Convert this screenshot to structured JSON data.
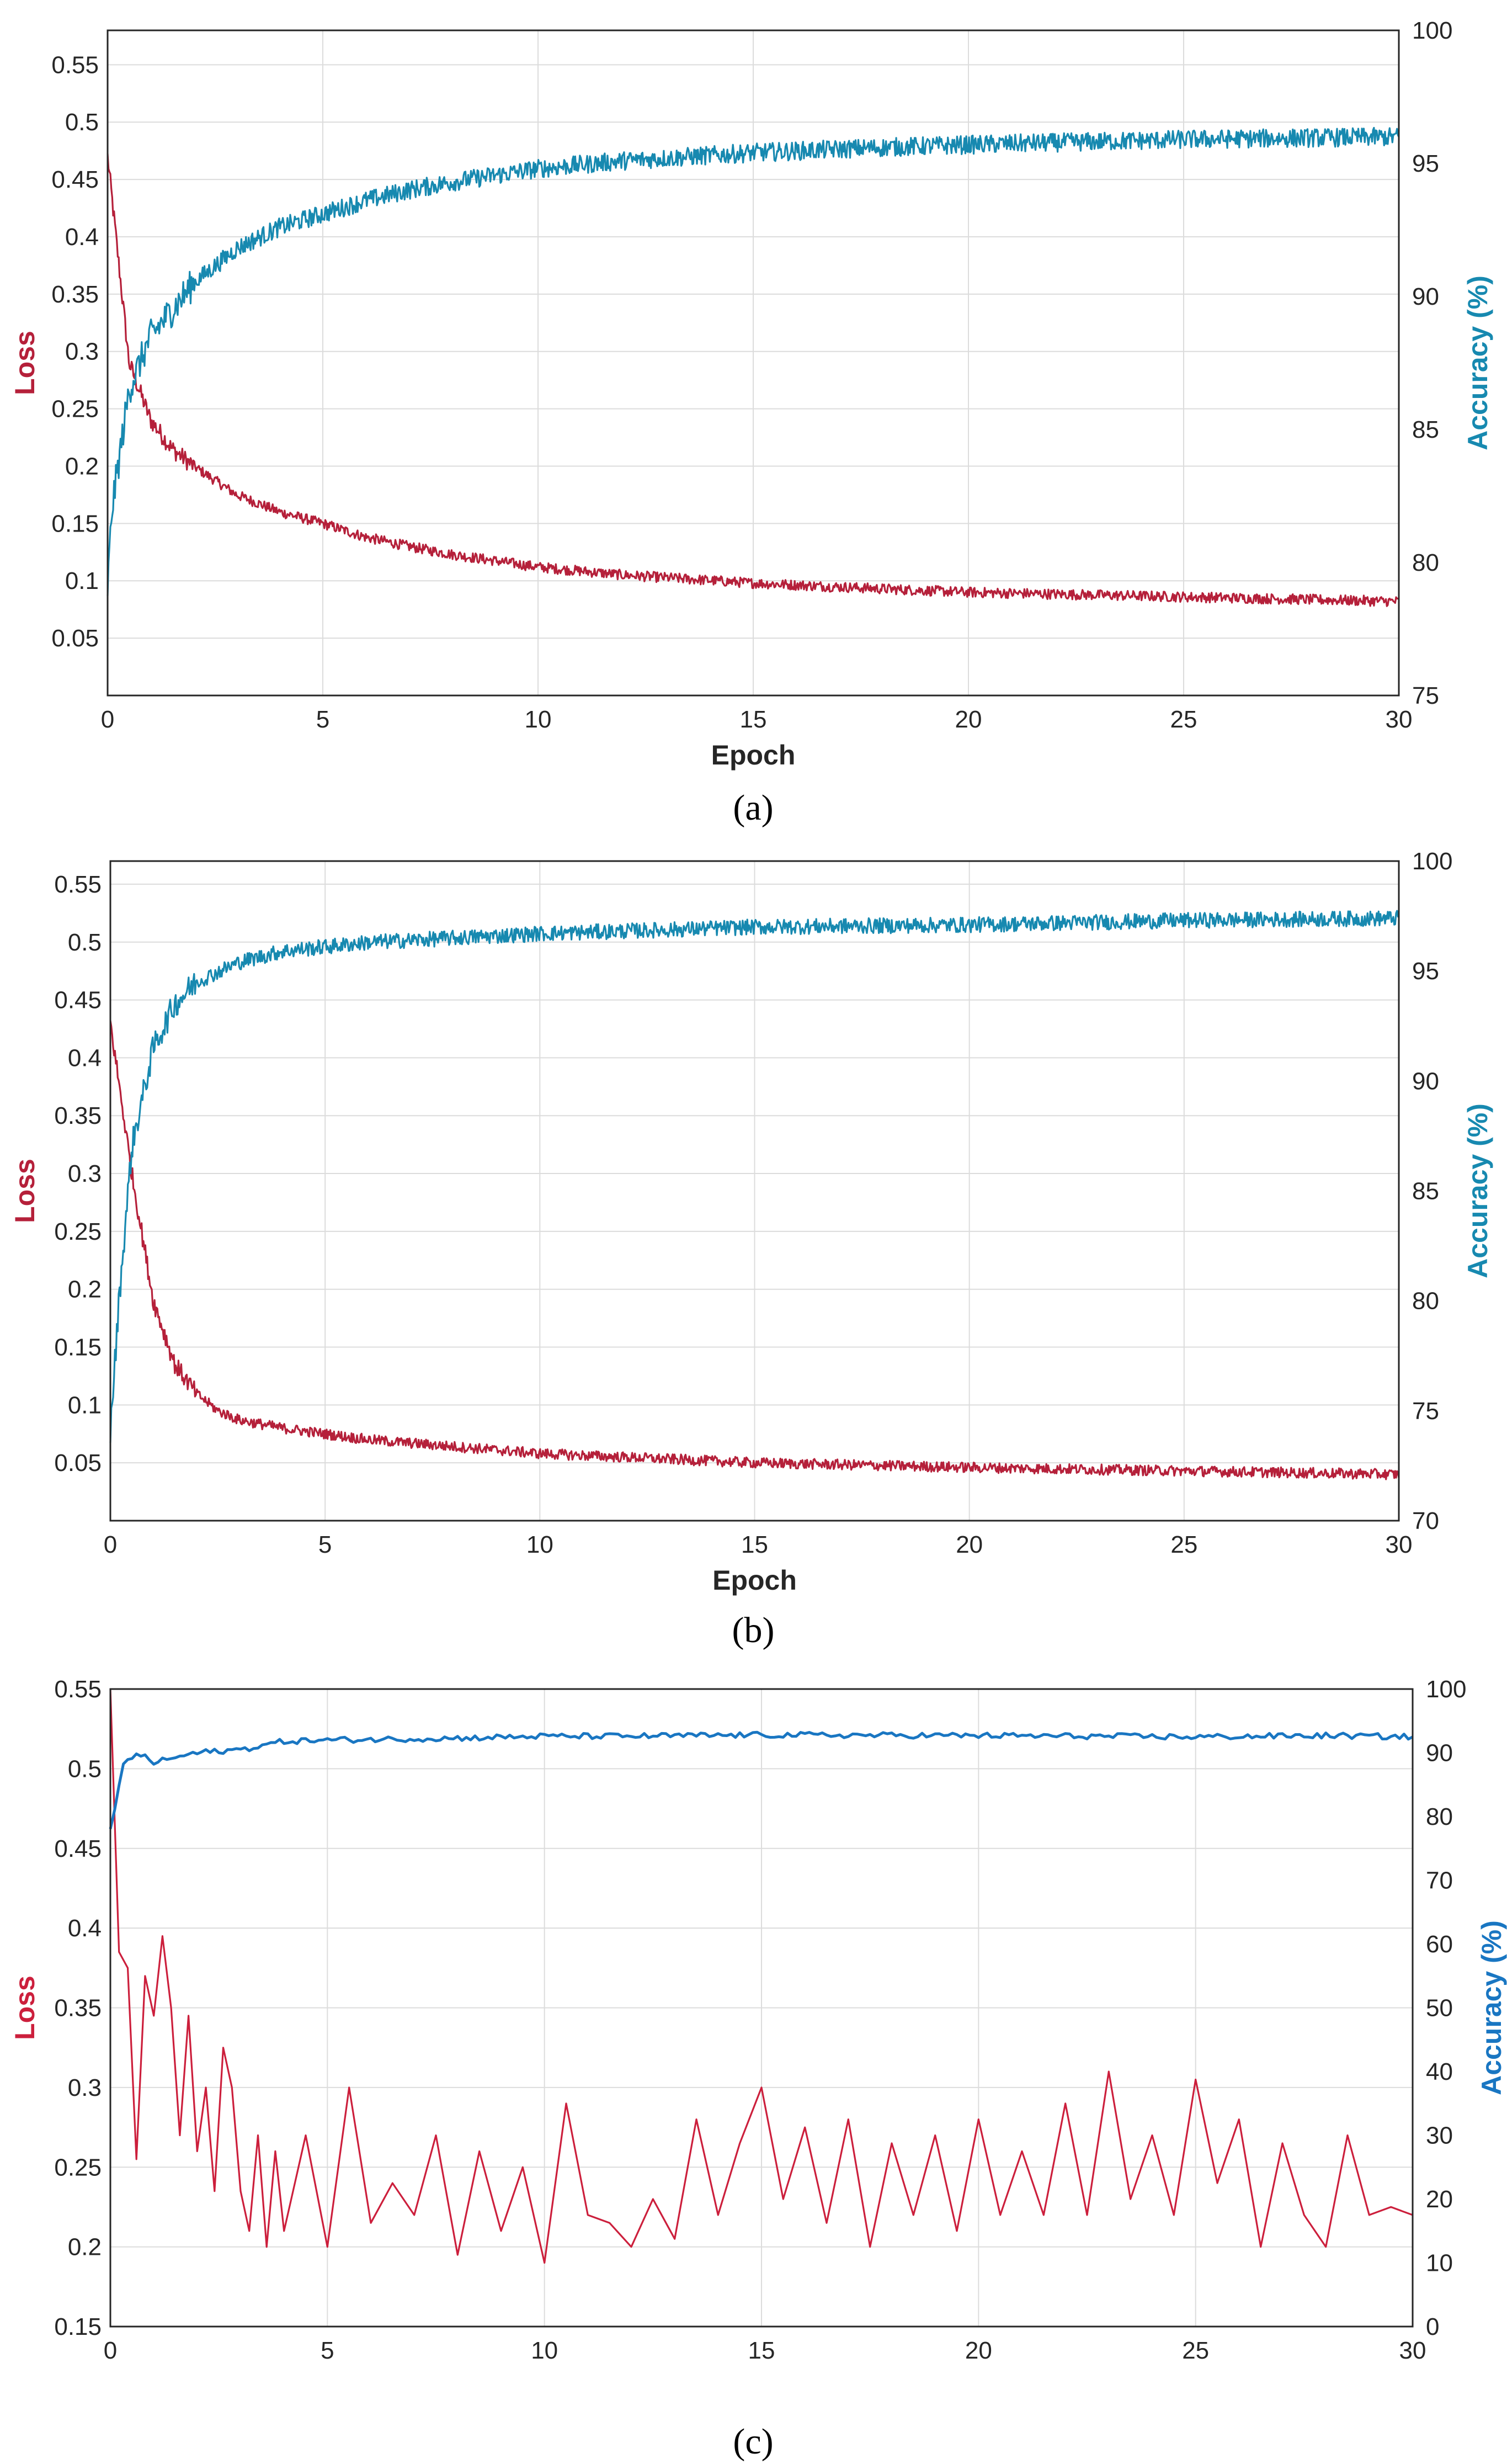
{
  "chart_data": [
    {
      "type": "line",
      "panel_label": "(a)",
      "panel_letter": "a",
      "xlabel": "Epoch",
      "ylabel_left": "Loss",
      "ylabel_right": "Accuracy (%)",
      "xlim": [
        0,
        30
      ],
      "ylim_left": [
        0,
        0.58
      ],
      "ylim_right": [
        75,
        100
      ],
      "xticks": [
        0,
        5,
        10,
        15,
        20,
        25,
        30
      ],
      "yticks_left": [
        0.05,
        0.1,
        0.15,
        0.2,
        0.25,
        0.3,
        0.35,
        0.4,
        0.45,
        0.5,
        0.55
      ],
      "yticks_right": [
        75,
        80,
        85,
        90,
        95,
        100
      ],
      "grid": true,
      "colors": {
        "loss": "#b5203a",
        "accuracy": "#1789b0"
      },
      "series": [
        {
          "name": "Loss",
          "axis": "left",
          "x": [
            0,
            0.5,
            1,
            1.5,
            2,
            3,
            4,
            5,
            6,
            7,
            8,
            10,
            12,
            15,
            18,
            20,
            25,
            30
          ],
          "values": [
            0.47,
            0.29,
            0.24,
            0.215,
            0.2,
            0.175,
            0.16,
            0.15,
            0.138,
            0.13,
            0.123,
            0.112,
            0.105,
            0.098,
            0.093,
            0.09,
            0.086,
            0.082
          ]
        },
        {
          "name": "Accuracy",
          "axis": "right",
          "x": [
            0,
            0.1,
            0.5,
            1,
            2,
            3,
            4,
            5,
            6,
            7,
            8,
            10,
            12,
            15,
            18,
            20,
            25,
            30
          ],
          "values": [
            79,
            82,
            86.5,
            88.5,
            90.5,
            91.8,
            92.6,
            93.1,
            93.6,
            94,
            94.3,
            94.8,
            95.1,
            95.4,
            95.6,
            95.7,
            95.9,
            96
          ]
        }
      ]
    },
    {
      "type": "line",
      "panel_label": "(b)",
      "panel_letter": "b",
      "xlabel": "Epoch",
      "ylabel_left": "Loss",
      "ylabel_right": "Accuracy (%)",
      "xlim": [
        0,
        30
      ],
      "ylim_left": [
        0,
        0.57
      ],
      "ylim_right": [
        70,
        100
      ],
      "xticks": [
        0,
        5,
        10,
        15,
        20,
        25,
        30
      ],
      "yticks_left": [
        0.05,
        0.1,
        0.15,
        0.2,
        0.25,
        0.3,
        0.35,
        0.4,
        0.45,
        0.5,
        0.55
      ],
      "yticks_right": [
        70,
        75,
        80,
        85,
        90,
        95,
        100
      ],
      "grid": true,
      "colors": {
        "loss": "#b5203a",
        "accuracy": "#1789b0"
      },
      "series": [
        {
          "name": "Loss",
          "axis": "left",
          "x": [
            0,
            0.5,
            1,
            1.5,
            2,
            2.5,
            3,
            4,
            5,
            6,
            8,
            10,
            15,
            20,
            25,
            30
          ],
          "values": [
            0.43,
            0.3,
            0.19,
            0.135,
            0.11,
            0.095,
            0.087,
            0.08,
            0.075,
            0.07,
            0.064,
            0.058,
            0.05,
            0.046,
            0.043,
            0.04
          ]
        },
        {
          "name": "Accuracy",
          "axis": "right",
          "x": [
            0,
            0.2,
            0.5,
            1,
            1.5,
            2,
            3,
            4,
            5,
            6,
            8,
            10,
            15,
            20,
            25,
            30
          ],
          "values": [
            74,
            80,
            87,
            91.5,
            93.5,
            94.5,
            95.4,
            95.9,
            96.1,
            96.3,
            96.5,
            96.7,
            97,
            97.1,
            97.3,
            97.4
          ]
        }
      ]
    },
    {
      "type": "line",
      "panel_label": "(c)",
      "panel_letter": "c",
      "xlabel": "",
      "ylabel_left": "Loss",
      "ylabel_right": "Accuracy (%)",
      "xlim": [
        0,
        30
      ],
      "ylim_left": [
        0.15,
        0.55
      ],
      "ylim_right": [
        0,
        100
      ],
      "xticks": [
        0,
        5,
        10,
        15,
        20,
        25,
        30
      ],
      "yticks_left": [
        0.15,
        0.2,
        0.25,
        0.3,
        0.35,
        0.4,
        0.45,
        0.5,
        0.55
      ],
      "yticks_right": [
        0,
        10,
        20,
        30,
        40,
        50,
        60,
        70,
        80,
        90,
        100
      ],
      "grid": true,
      "colors": {
        "loss": "#cc1f3c",
        "accuracy": "#1976c2"
      },
      "series": [
        {
          "name": "Loss",
          "axis": "left",
          "x": [
            0,
            0.2,
            0.4,
            0.6,
            0.8,
            1.0,
            1.2,
            1.4,
            1.6,
            1.8,
            2.0,
            2.2,
            2.4,
            2.6,
            2.8,
            3.0,
            3.2,
            3.4,
            3.6,
            3.8,
            4.0,
            4.5,
            5.0,
            5.5,
            6.0,
            6.5,
            7.0,
            7.5,
            8.0,
            8.5,
            9.0,
            9.5,
            10.0,
            10.5,
            11.0,
            11.5,
            12.0,
            12.5,
            13.0,
            13.5,
            14.0,
            14.5,
            15.0,
            15.5,
            16.0,
            16.5,
            17.0,
            17.5,
            18.0,
            18.5,
            19.0,
            19.5,
            20.0,
            20.5,
            21.0,
            21.5,
            22.0,
            22.5,
            23.0,
            23.5,
            24.0,
            24.5,
            25.0,
            25.5,
            26.0,
            26.5,
            27.0,
            27.5,
            28.0,
            28.5,
            29.0,
            29.5,
            30.0
          ],
          "values": [
            0.55,
            0.385,
            0.375,
            0.255,
            0.37,
            0.345,
            0.395,
            0.35,
            0.27,
            0.345,
            0.26,
            0.3,
            0.235,
            0.325,
            0.3,
            0.235,
            0.21,
            0.27,
            0.2,
            0.26,
            0.21,
            0.27,
            0.2,
            0.3,
            0.215,
            0.24,
            0.22,
            0.27,
            0.195,
            0.26,
            0.21,
            0.25,
            0.19,
            0.29,
            0.22,
            0.215,
            0.2,
            0.23,
            0.205,
            0.28,
            0.22,
            0.265,
            0.3,
            0.23,
            0.275,
            0.215,
            0.28,
            0.2,
            0.265,
            0.22,
            0.27,
            0.21,
            0.28,
            0.22,
            0.26,
            0.22,
            0.29,
            0.22,
            0.31,
            0.23,
            0.27,
            0.22,
            0.305,
            0.24,
            0.28,
            0.2,
            0.265,
            0.22,
            0.2,
            0.27,
            0.22,
            0.225,
            0.22
          ]
        },
        {
          "name": "Accuracy",
          "axis": "right",
          "x": [
            0,
            0.3,
            0.6,
            1,
            2,
            3,
            4,
            5,
            8,
            10,
            12,
            15,
            20,
            25,
            28,
            30
          ],
          "values": [
            78,
            88,
            90,
            88.5,
            90,
            90.5,
            91.8,
            92,
            92.3,
            92.6,
            92.6,
            92.8,
            92.7,
            92.5,
            92.7,
            92.5
          ]
        }
      ]
    }
  ]
}
